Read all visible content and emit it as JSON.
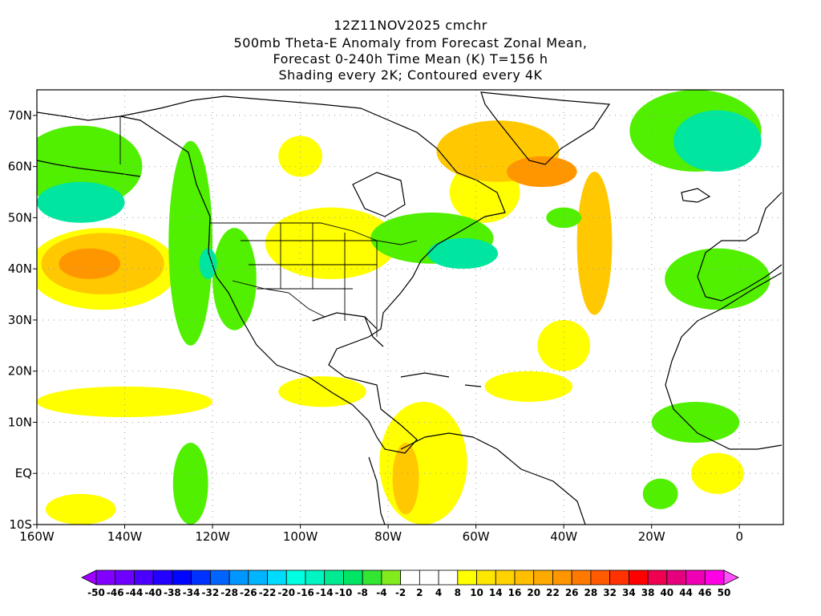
{
  "title_lines": [
    "12Z11NOV2025 cmchr",
    "500mb Theta-E Anomaly from Forecast Zonal Mean,",
    "Forecast 0-240h Time Mean (K) T=156 h",
    "Shading every 2K; Contoured every 4K"
  ],
  "map": {
    "lon_range": [
      -160,
      10
    ],
    "lat_range": [
      -10,
      75
    ],
    "lon_ticks": [
      {
        "lon": -160,
        "label": "160W"
      },
      {
        "lon": -140,
        "label": "140W"
      },
      {
        "lon": -120,
        "label": "120W"
      },
      {
        "lon": -100,
        "label": "100W"
      },
      {
        "lon": -80,
        "label": "80W"
      },
      {
        "lon": -60,
        "label": "60W"
      },
      {
        "lon": -40,
        "label": "40W"
      },
      {
        "lon": -20,
        "label": "20W"
      },
      {
        "lon": 0,
        "label": "0"
      }
    ],
    "lat_ticks": [
      {
        "lat": 70,
        "label": "70N"
      },
      {
        "lat": 60,
        "label": "60N"
      },
      {
        "lat": 50,
        "label": "50N"
      },
      {
        "lat": 40,
        "label": "40N"
      },
      {
        "lat": 30,
        "label": "30N"
      },
      {
        "lat": 20,
        "label": "20N"
      },
      {
        "lat": 10,
        "label": "10N"
      },
      {
        "lat": 0,
        "label": "EQ"
      },
      {
        "lat": -10,
        "label": "10S"
      }
    ],
    "grid": true
  },
  "colorbar": {
    "labels": [
      "-50",
      "-46",
      "-44",
      "-40",
      "-38",
      "-34",
      "-32",
      "-28",
      "-26",
      "-22",
      "-20",
      "-16",
      "-14",
      "-10",
      "-8",
      "-4",
      "-2",
      "2",
      "4",
      "8",
      "10",
      "14",
      "16",
      "20",
      "22",
      "26",
      "28",
      "32",
      "34",
      "38",
      "40",
      "44",
      "46",
      "50"
    ],
    "colors": [
      "#a000ff",
      "#8200ff",
      "#6e00ff",
      "#4b00ff",
      "#2300ff",
      "#0005ff",
      "#0032ff",
      "#0064ff",
      "#0096ff",
      "#00b4ff",
      "#00dcff",
      "#00ffe1",
      "#00f5c3",
      "#00eb91",
      "#00e664",
      "#32e632",
      "#82eb1e",
      "#ffffff",
      "#ffffff",
      "#ffffff",
      "#ffff00",
      "#ffe600",
      "#ffd200",
      "#ffbe00",
      "#ffaa00",
      "#ff9600",
      "#ff7800",
      "#ff5a00",
      "#ff3200",
      "#ff0000",
      "#f00050",
      "#e6007d",
      "#f000b4",
      "#ff00e6",
      "#ff50ff"
    ]
  },
  "anomaly_regions": [
    {
      "color": "#50f000",
      "lon": -150,
      "lat": 60,
      "rx": 14,
      "ry": 8
    },
    {
      "color": "#00e6a0",
      "lon": -150,
      "lat": 53,
      "rx": 10,
      "ry": 4
    },
    {
      "color": "#ffff00",
      "lon": -145,
      "lat": 40,
      "rx": 17,
      "ry": 8
    },
    {
      "color": "#ffc800",
      "lon": -145,
      "lat": 41,
      "rx": 14,
      "ry": 6
    },
    {
      "color": "#ff9600",
      "lon": -148,
      "lat": 41,
      "rx": 7,
      "ry": 3
    },
    {
      "color": "#50f000",
      "lon": -125,
      "lat": 45,
      "rx": 5,
      "ry": 20
    },
    {
      "color": "#50f000",
      "lon": -115,
      "lat": 38,
      "rx": 5,
      "ry": 10
    },
    {
      "color": "#00e6a0",
      "lon": -121,
      "lat": 41,
      "rx": 2,
      "ry": 3
    },
    {
      "color": "#ffff00",
      "lon": -93,
      "lat": 45,
      "rx": 15,
      "ry": 7
    },
    {
      "color": "#ffff00",
      "lon": -100,
      "lat": 62,
      "rx": 5,
      "ry": 4
    },
    {
      "color": "#ffff00",
      "lon": -58,
      "lat": 55,
      "rx": 8,
      "ry": 6
    },
    {
      "color": "#ffc800",
      "lon": -55,
      "lat": 63,
      "rx": 14,
      "ry": 6
    },
    {
      "color": "#ff9600",
      "lon": -45,
      "lat": 59,
      "rx": 8,
      "ry": 3
    },
    {
      "color": "#ffc800",
      "lon": -33,
      "lat": 45,
      "rx": 4,
      "ry": 14
    },
    {
      "color": "#ffff00",
      "lon": -40,
      "lat": 25,
      "rx": 6,
      "ry": 5
    },
    {
      "color": "#50f000",
      "lon": -70,
      "lat": 46,
      "rx": 14,
      "ry": 5
    },
    {
      "color": "#00e6a0",
      "lon": -63,
      "lat": 43,
      "rx": 8,
      "ry": 3
    },
    {
      "color": "#50f000",
      "lon": -10,
      "lat": 67,
      "rx": 15,
      "ry": 8
    },
    {
      "color": "#00e6a0",
      "lon": -5,
      "lat": 65,
      "rx": 10,
      "ry": 6
    },
    {
      "color": "#50f000",
      "lon": -5,
      "lat": 38,
      "rx": 12,
      "ry": 6
    },
    {
      "color": "#50f000",
      "lon": -40,
      "lat": 50,
      "rx": 4,
      "ry": 2
    },
    {
      "color": "#ffff00",
      "lon": -140,
      "lat": 14,
      "rx": 20,
      "ry": 3
    },
    {
      "color": "#ffff00",
      "lon": -95,
      "lat": 16,
      "rx": 10,
      "ry": 3
    },
    {
      "color": "#ffff00",
      "lon": -48,
      "lat": 17,
      "rx": 10,
      "ry": 3
    },
    {
      "color": "#ffff00",
      "lon": -72,
      "lat": 2,
      "rx": 10,
      "ry": 12
    },
    {
      "color": "#ffc800",
      "lon": -76,
      "lat": -1,
      "rx": 3,
      "ry": 7
    },
    {
      "color": "#50f000",
      "lon": -10,
      "lat": 10,
      "rx": 10,
      "ry": 4
    },
    {
      "color": "#50f000",
      "lon": -125,
      "lat": -2,
      "rx": 4,
      "ry": 8
    },
    {
      "color": "#50f000",
      "lon": -18,
      "lat": -4,
      "rx": 4,
      "ry": 3
    },
    {
      "color": "#ffff00",
      "lon": -150,
      "lat": -7,
      "rx": 8,
      "ry": 3
    },
    {
      "color": "#ffff00",
      "lon": -5,
      "lat": 0,
      "rx": 6,
      "ry": 4
    }
  ]
}
